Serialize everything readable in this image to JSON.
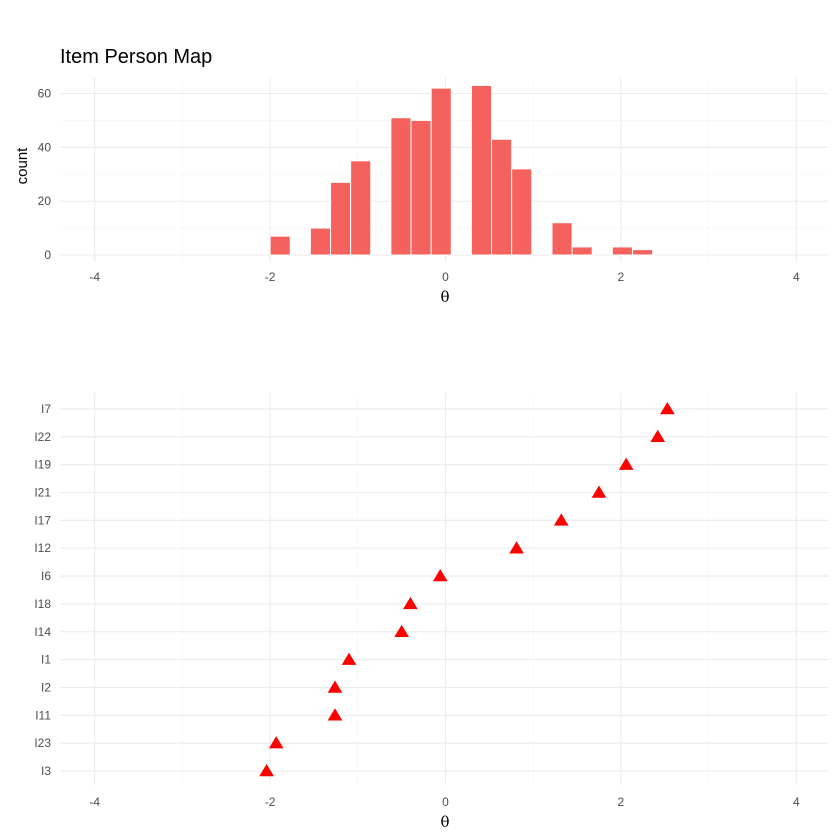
{
  "chart_data": [
    {
      "type": "bar",
      "title": "Item Person Map",
      "xlabel": "θ",
      "ylabel": "count",
      "xlim": [
        -4,
        4
      ],
      "ylim": [
        0,
        62.88
      ],
      "x_ticks": [
        "-4",
        "-2",
        "0",
        "2",
        "4"
      ],
      "y_ticks": [
        "0",
        "20",
        "40",
        "60"
      ],
      "x_tick_values": [
        -4,
        -2,
        0,
        2,
        4
      ],
      "y_tick_values": [
        0,
        20,
        40,
        60
      ],
      "x_minor_values": [
        -3,
        -1,
        1,
        3
      ],
      "y_minor_values": [
        10,
        30,
        50
      ],
      "grid": true,
      "bar_color": "#f5615c",
      "bin_width": 0.2295,
      "bins": [
        {
          "x": -4.0,
          "value": 0
        },
        {
          "x": -1.885,
          "value": 7
        },
        {
          "x": -1.426,
          "value": 10
        },
        {
          "x": -1.196,
          "value": 27
        },
        {
          "x": -0.967,
          "value": 35
        },
        {
          "x": -0.508,
          "value": 51
        },
        {
          "x": -0.278,
          "value": 50
        },
        {
          "x": -0.049,
          "value": 62
        },
        {
          "x": 0.41,
          "value": 63
        },
        {
          "x": 0.64,
          "value": 43
        },
        {
          "x": 0.869,
          "value": 32
        },
        {
          "x": 1.329,
          "value": 12
        },
        {
          "x": 1.558,
          "value": 3
        },
        {
          "x": 2.017,
          "value": 3
        },
        {
          "x": 2.247,
          "value": 2
        },
        {
          "x": 4.0,
          "value": 0
        }
      ]
    },
    {
      "type": "scatter",
      "title": "",
      "xlabel": "θ",
      "ylabel": "",
      "xlim": [
        -4,
        4
      ],
      "x_ticks": [
        "-4",
        "-2",
        "0",
        "2",
        "4"
      ],
      "x_tick_values": [
        -4,
        -2,
        0,
        2,
        4
      ],
      "x_minor_values": [
        -3,
        -1,
        1,
        3
      ],
      "grid": true,
      "marker": "triangle",
      "marker_color": "#ff0000",
      "categories": [
        "I3",
        "I23",
        "I11",
        "I2",
        "I1",
        "I14",
        "I18",
        "I6",
        "I12",
        "I17",
        "I21",
        "I19",
        "I22",
        "I7"
      ],
      "values": [
        -2.04,
        -1.93,
        -1.26,
        -1.26,
        -1.1,
        -0.5,
        -0.4,
        -0.06,
        0.81,
        1.32,
        1.75,
        2.06,
        2.42,
        2.53
      ]
    }
  ]
}
